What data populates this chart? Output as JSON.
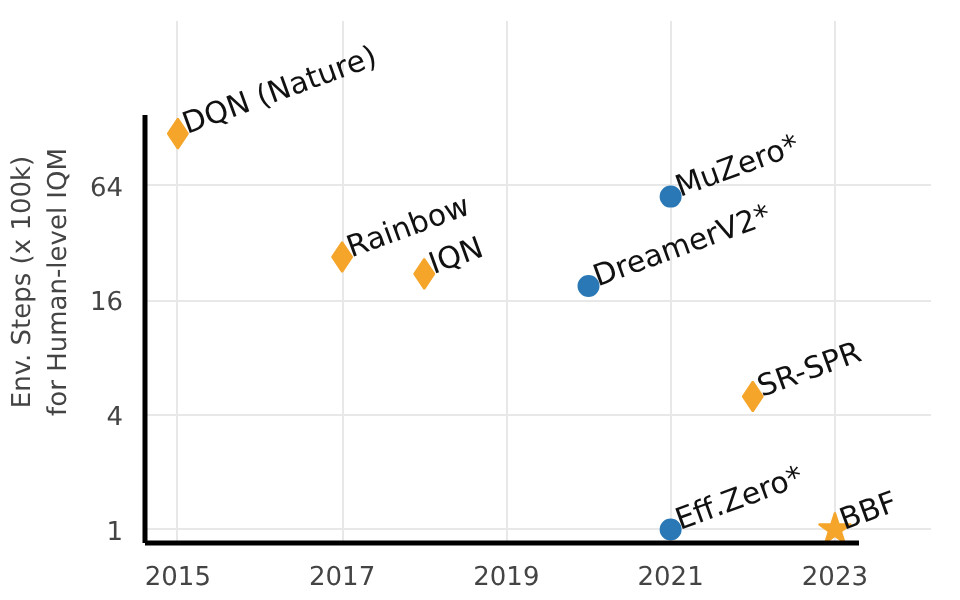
{
  "chart_data": {
    "type": "scatter",
    "ylabel": "Env. Steps (x 100k)\nfor Human-level IQM",
    "log": "y",
    "grid": true,
    "xlim": [
      2014.6,
      2023.3
    ],
    "xticks": [
      2015,
      2017,
      2019,
      2021,
      2023
    ],
    "ylim": [
      0.85,
      150
    ],
    "yticks": [
      1,
      4,
      16,
      64
    ],
    "series": [
      {
        "color": "#f5a52a",
        "marker": "diamond",
        "x": [
          2015,
          2017,
          2018,
          2022
        ],
        "values": [
          120,
          27,
          22,
          5
        ]
      },
      {
        "color": "#2a78b5",
        "marker": "circle",
        "x": [
          2020,
          2021,
          2021
        ],
        "values": [
          19,
          56,
          1
        ]
      },
      {
        "color": "#f5a52a",
        "marker": "star",
        "x": [
          2023
        ],
        "values": [
          1
        ]
      }
    ],
    "annotations": [
      {
        "text": "DQN (Nature)",
        "x": 2015,
        "y": 120
      },
      {
        "text": "Rainbow",
        "x": 2017,
        "y": 27
      },
      {
        "text": "IQN",
        "x": 2018,
        "y": 22
      },
      {
        "text": "SR-SPR",
        "x": 2022,
        "y": 5
      },
      {
        "text": "DreamerV2*",
        "x": 2020,
        "y": 19
      },
      {
        "text": "MuZero*",
        "x": 2021,
        "y": 56
      },
      {
        "text": "Eff.Zero*",
        "x": 2021,
        "y": 1
      },
      {
        "text": "BBF",
        "x": 2023,
        "y": 1
      }
    ]
  }
}
